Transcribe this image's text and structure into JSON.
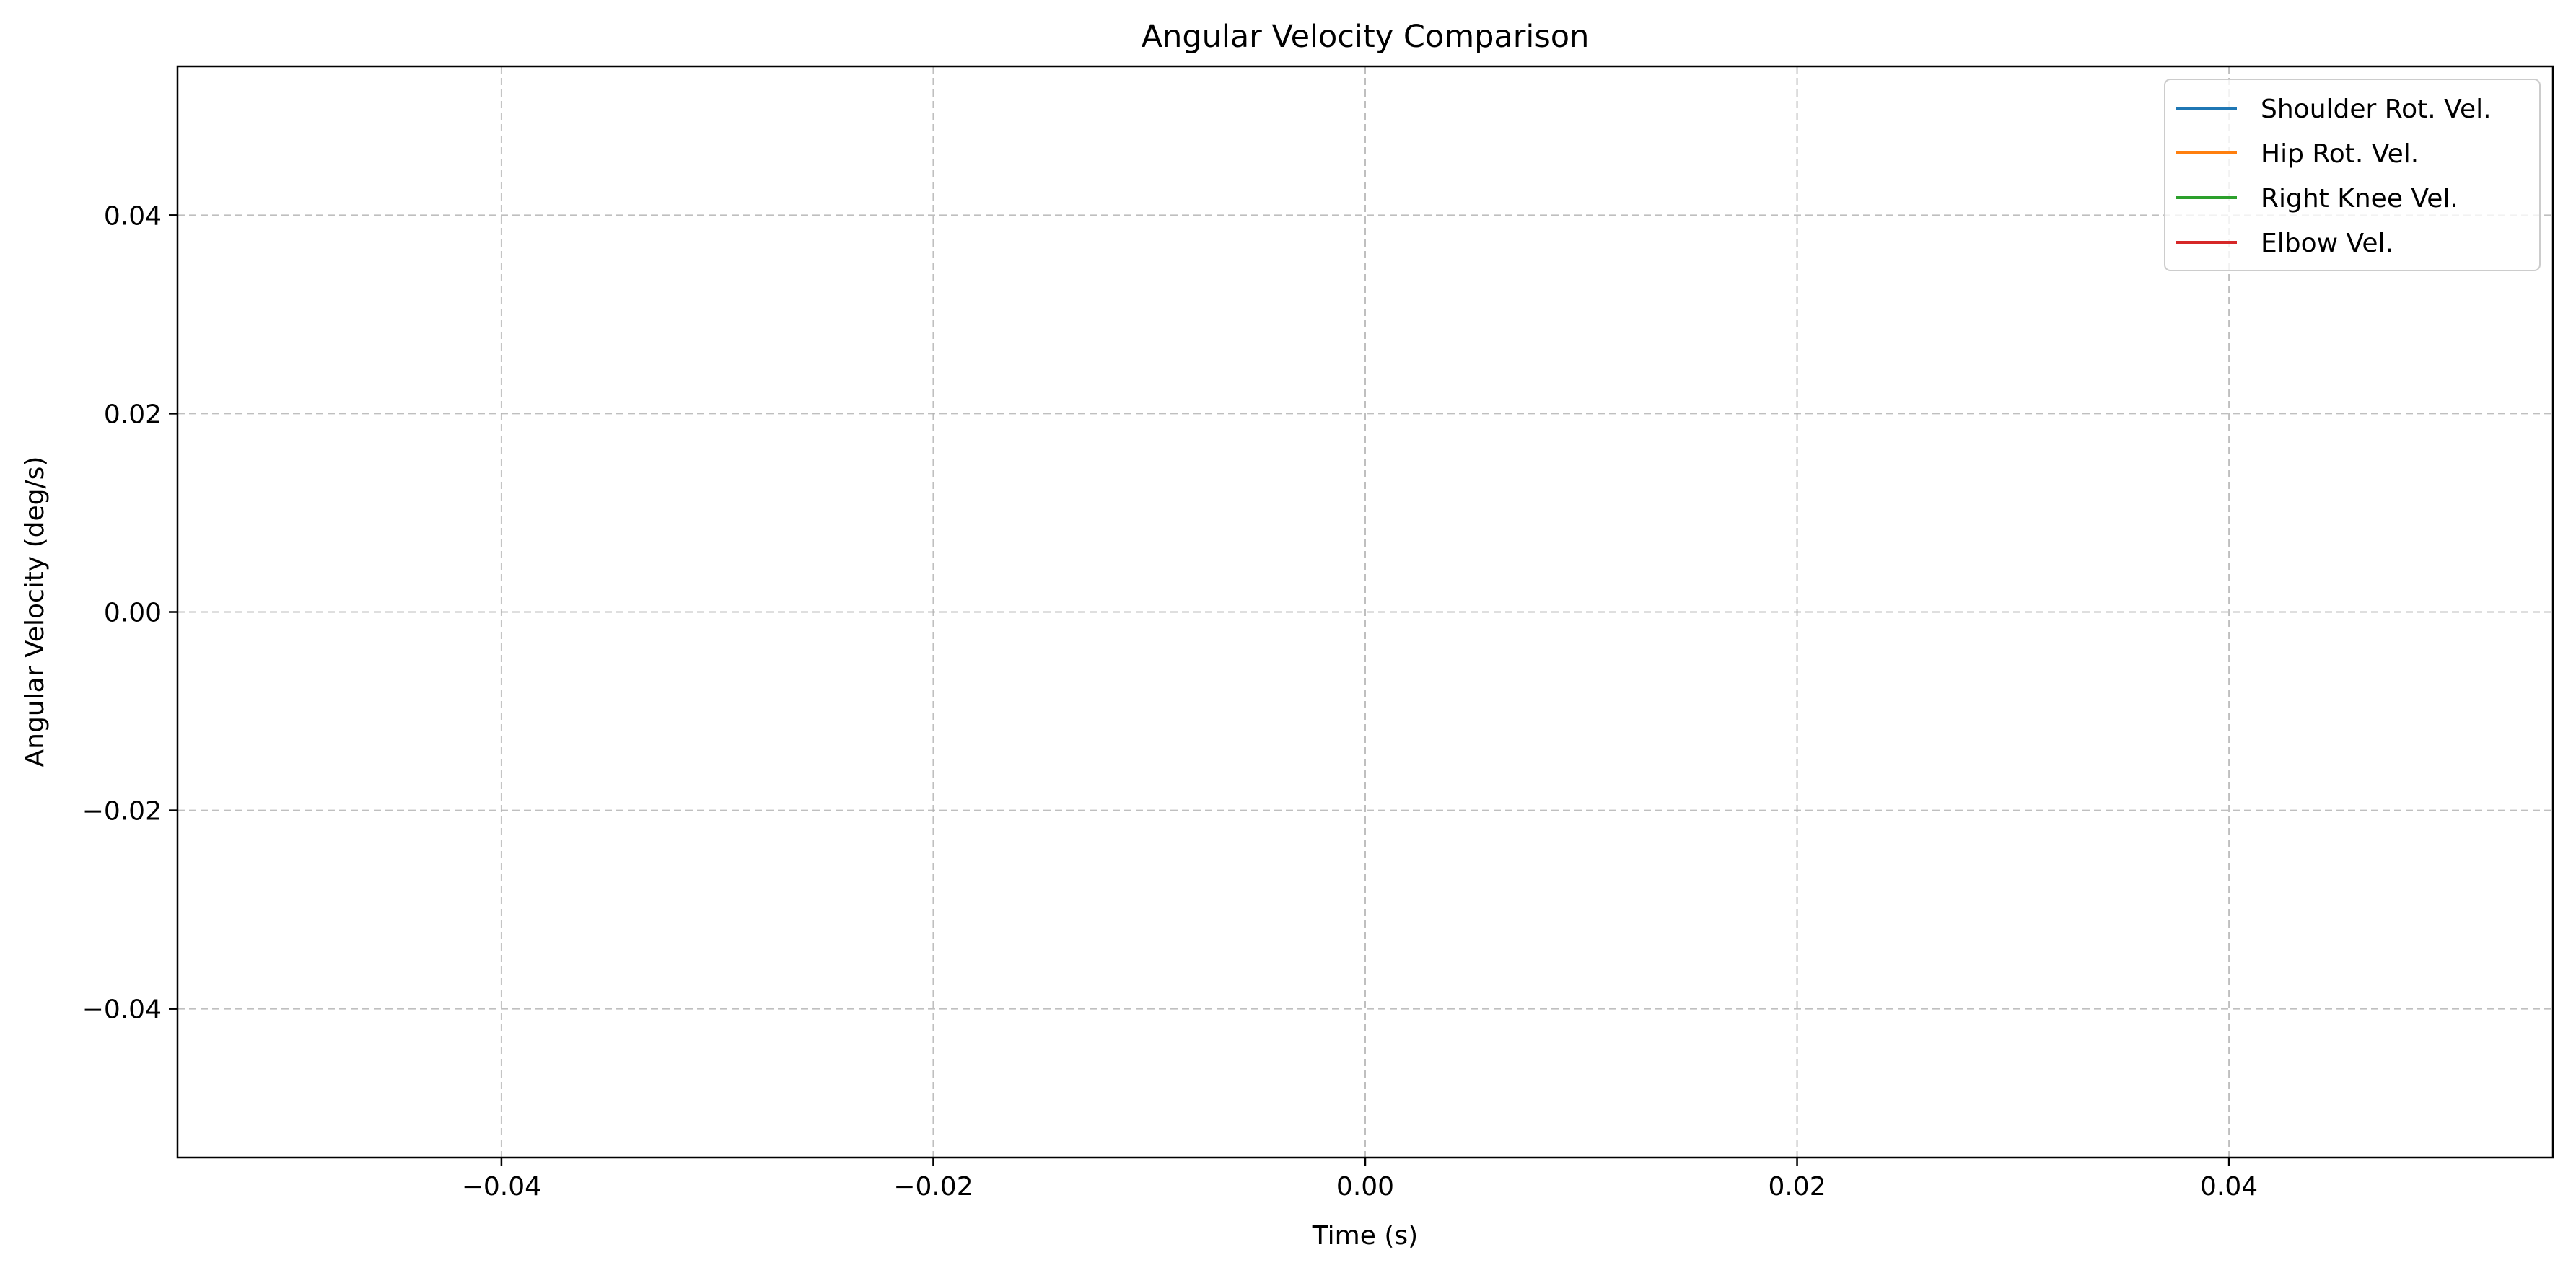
{
  "chart_data": {
    "type": "line",
    "title": "Angular Velocity Comparison",
    "xlabel": "Time (s)",
    "ylabel": "Angular Velocity (deg/s)",
    "xlim": [
      -0.055,
      0.055
    ],
    "ylim": [
      -0.055,
      0.055
    ],
    "x_ticks": [
      -0.04,
      -0.02,
      0.0,
      0.02,
      0.04
    ],
    "y_ticks": [
      -0.04,
      -0.02,
      0.0,
      0.02,
      0.04
    ],
    "x_tick_labels": [
      "−0.04",
      "−0.02",
      "0.00",
      "0.02",
      "0.04"
    ],
    "y_tick_labels": [
      "−0.04",
      "−0.02",
      "0.00",
      "0.02",
      "0.04"
    ],
    "grid": true,
    "legend_position": "top-right",
    "series": [
      {
        "name": "Shoulder Rot. Vel.",
        "color": "#1f77b4",
        "x": [],
        "y": []
      },
      {
        "name": "Hip Rot. Vel.",
        "color": "#ff7f0e",
        "x": [],
        "y": []
      },
      {
        "name": "Right Knee Vel.",
        "color": "#2ca02c",
        "x": [],
        "y": []
      },
      {
        "name": "Elbow Vel.",
        "color": "#d62728",
        "x": [],
        "y": []
      }
    ]
  }
}
